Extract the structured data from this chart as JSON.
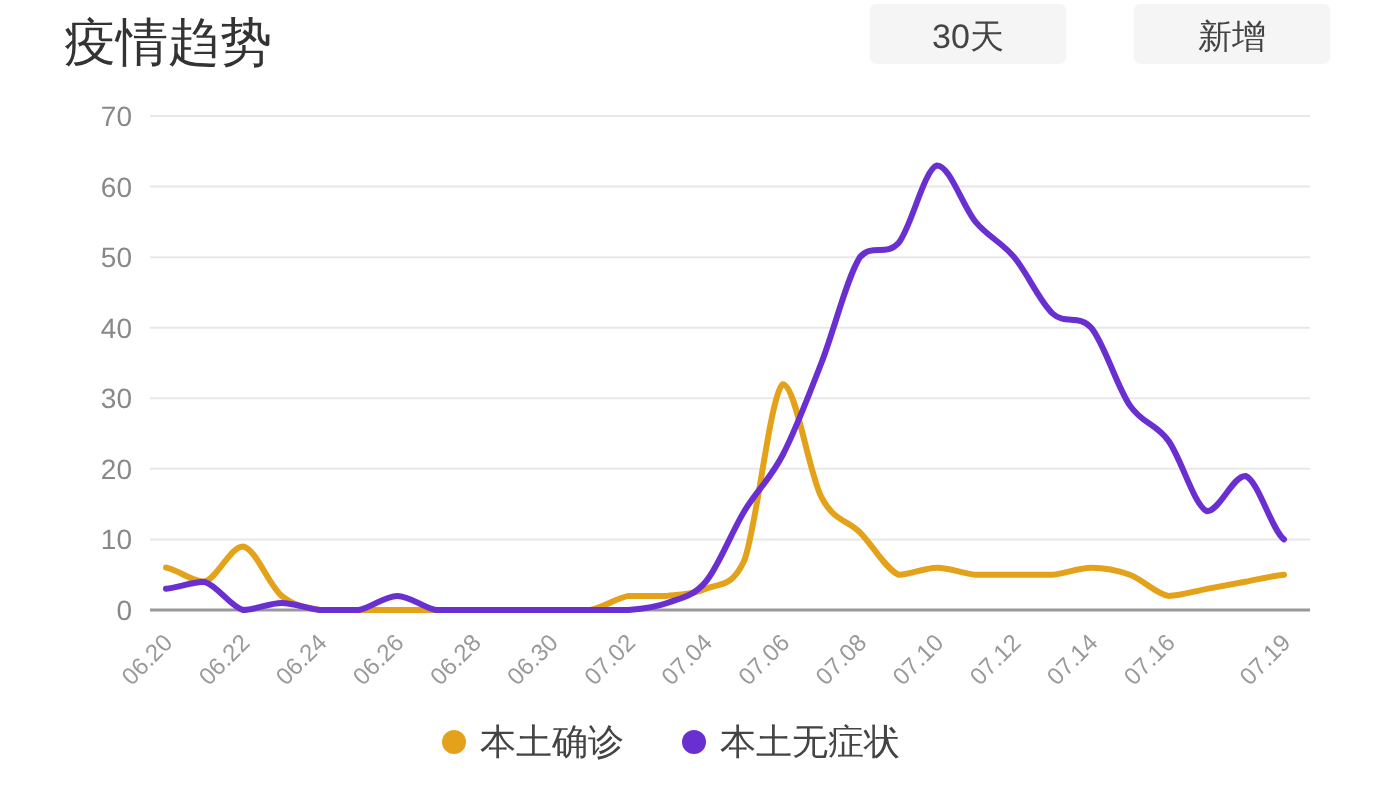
{
  "chart_data": {
    "type": "line",
    "title": "疫情趋势",
    "annotations": [
      "30天",
      "新增"
    ],
    "categories": [
      "06.20",
      null,
      "06.22",
      null,
      "06.24",
      null,
      "06.26",
      null,
      "06.28",
      null,
      "06.30",
      null,
      "07.02",
      null,
      "07.04",
      null,
      "07.06",
      null,
      "07.08",
      null,
      "07.10",
      null,
      "07.12",
      null,
      "07.14",
      null,
      "07.16",
      null,
      null,
      "07.19"
    ],
    "series": [
      {
        "name": "本土确诊",
        "color": "#e3a21a",
        "values": [
          6,
          4,
          9,
          2,
          0,
          0,
          0,
          0,
          0,
          0,
          0,
          0,
          2,
          2,
          3,
          7,
          32,
          16,
          11,
          5,
          6,
          5,
          5,
          5,
          6,
          5,
          2,
          3,
          4,
          5
        ]
      },
      {
        "name": "本土无症状",
        "color": "#6a2fd1",
        "values": [
          3,
          4,
          0,
          1,
          0,
          0,
          2,
          0,
          0,
          0,
          0,
          0,
          0,
          1,
          4,
          14,
          22,
          35,
          50,
          52,
          63,
          55,
          50,
          42,
          40,
          29,
          24,
          14,
          19,
          10
        ]
      }
    ],
    "ylim": [
      0,
      70
    ],
    "yticks": [
      0,
      10,
      20,
      30,
      40,
      50,
      60,
      70
    ],
    "grid": "y",
    "legend": "bottom",
    "marker": "none",
    "line_style": "solid"
  }
}
